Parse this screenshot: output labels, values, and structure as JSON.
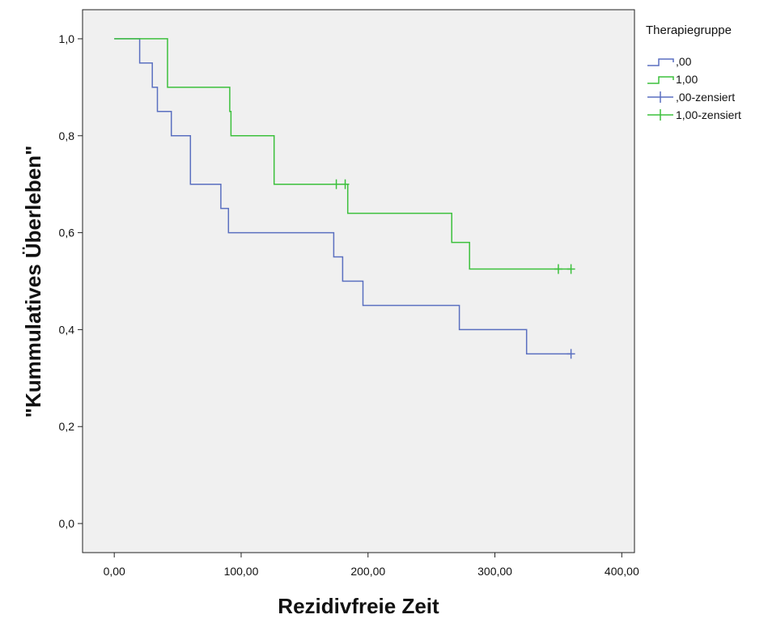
{
  "chart_data": {
    "type": "line",
    "subtype": "kaplan-meier step",
    "xlabel": "Rezidivfreie Zeit",
    "ylabel": "\"Kummulatives Überleben\"",
    "xlim": [
      -25,
      410
    ],
    "ylim": [
      -0.06,
      1.06
    ],
    "x_ticks": [
      0,
      100,
      200,
      300,
      400
    ],
    "x_tick_labels": [
      "0,00",
      "100,00",
      "200,00",
      "300,00",
      "400,00"
    ],
    "y_ticks": [
      0.0,
      0.2,
      0.4,
      0.6,
      0.8,
      1.0
    ],
    "y_tick_labels": [
      "0,0",
      "0,2",
      "0,4",
      "0,6",
      "0,8",
      "1,0"
    ],
    "grid": false,
    "background": "#f0f0f0",
    "legend": {
      "title": "Therapiegruppe",
      "placement": "right",
      "entries": [
        {
          "label": ",00",
          "kind": "step",
          "color": "#5a6fc0"
        },
        {
          "label": "1,00",
          "kind": "step",
          "color": "#3cc03c"
        },
        {
          "label": ",00-zensiert",
          "kind": "censor",
          "color": "#5a6fc0"
        },
        {
          "label": "1,00-zensiert",
          "kind": "censor",
          "color": "#3cc03c"
        }
      ]
    },
    "series": [
      {
        "name": ",00",
        "color": "#5a6fc0",
        "points": [
          [
            0,
            1.0
          ],
          [
            20,
            1.0
          ],
          [
            20,
            0.95
          ],
          [
            30,
            0.95
          ],
          [
            30,
            0.9
          ],
          [
            34,
            0.9
          ],
          [
            34,
            0.85
          ],
          [
            45,
            0.85
          ],
          [
            45,
            0.8
          ],
          [
            60,
            0.8
          ],
          [
            60,
            0.7
          ],
          [
            84,
            0.7
          ],
          [
            84,
            0.65
          ],
          [
            90,
            0.65
          ],
          [
            90,
            0.6
          ],
          [
            173,
            0.6
          ],
          [
            173,
            0.55
          ],
          [
            180,
            0.55
          ],
          [
            180,
            0.5
          ],
          [
            196,
            0.5
          ],
          [
            196,
            0.45
          ],
          [
            272,
            0.45
          ],
          [
            272,
            0.4
          ],
          [
            325,
            0.4
          ],
          [
            325,
            0.35
          ],
          [
            360,
            0.35
          ]
        ],
        "censored": [
          [
            360,
            0.35
          ]
        ]
      },
      {
        "name": "1,00",
        "color": "#3cc03c",
        "points": [
          [
            0,
            1.0
          ],
          [
            42,
            1.0
          ],
          [
            42,
            0.9
          ],
          [
            91,
            0.9
          ],
          [
            91,
            0.85
          ],
          [
            92,
            0.85
          ],
          [
            92,
            0.8
          ],
          [
            126,
            0.8
          ],
          [
            126,
            0.7
          ],
          [
            184,
            0.7
          ],
          [
            184,
            0.64
          ],
          [
            266,
            0.64
          ],
          [
            266,
            0.58
          ],
          [
            280,
            0.58
          ],
          [
            280,
            0.525
          ],
          [
            360,
            0.525
          ]
        ],
        "censored": [
          [
            175,
            0.7
          ],
          [
            182,
            0.7
          ],
          [
            350,
            0.525
          ],
          [
            360,
            0.525
          ]
        ]
      }
    ]
  }
}
